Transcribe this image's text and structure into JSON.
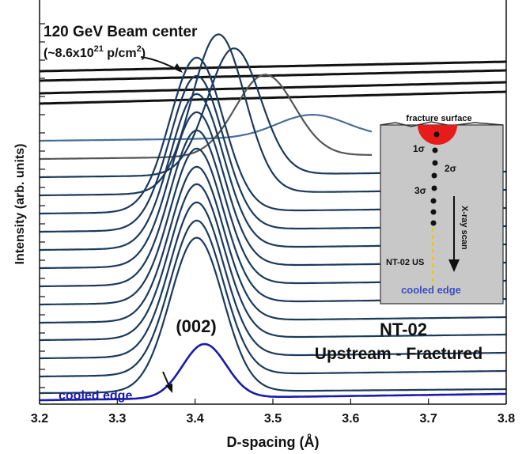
{
  "chart_data": {
    "type": "line",
    "xlabel": "D-spacing (Å)",
    "ylabel": "Intensity (arb. units)",
    "xlim": [
      3.2,
      3.8
    ],
    "x_ticks": [
      "3.2",
      "3.3",
      "3.4",
      "3.5",
      "3.6",
      "3.7",
      "3.8"
    ],
    "grid": false,
    "series": [
      {
        "name": "cooled edge",
        "peak_d": 3.412,
        "amplitude": 0.62,
        "color": "#1a1ab0",
        "emphasis": true
      },
      {
        "peak_d": 3.402,
        "amplitude": 0.95,
        "color": "#1b3a5c"
      },
      {
        "peak_d": 3.402,
        "amplitude": 0.95,
        "color": "#1b3a5c"
      },
      {
        "peak_d": 3.402,
        "amplitude": 0.95,
        "color": "#1b3a5c"
      },
      {
        "peak_d": 3.402,
        "amplitude": 0.95,
        "color": "#1b3a5c"
      },
      {
        "peak_d": 3.402,
        "amplitude": 0.95,
        "color": "#1b3a5c"
      },
      {
        "peak_d": 3.402,
        "amplitude": 0.95,
        "color": "#1b3a5c"
      },
      {
        "peak_d": 3.402,
        "amplitude": 0.95,
        "color": "#1b3a5c"
      },
      {
        "peak_d": 3.402,
        "amplitude": 0.95,
        "color": "#1b3a5c"
      },
      {
        "peak_d": 3.402,
        "amplitude": 0.95,
        "color": "#1b3a5c"
      },
      {
        "peak_d": 3.402,
        "amplitude": 0.95,
        "color": "#1b3a5c"
      },
      {
        "peak_d": 3.402,
        "amplitude": 0.95,
        "color": "#1b3a5c"
      },
      {
        "peak_d": 3.43,
        "amplitude": 0.98,
        "color": "#1b3a5c"
      },
      {
        "peak_d": 3.45,
        "amplitude": 0.8,
        "color": "#1b3a5c"
      },
      {
        "peak_d": 3.49,
        "amplitude": 0.48,
        "color": "#555555"
      },
      {
        "peak_d": 3.55,
        "amplitude": 0.12,
        "color": "#4a6f96"
      },
      {
        "peak_d": null,
        "amplitude": 0,
        "color": "#111111"
      },
      {
        "peak_d": null,
        "amplitude": 0,
        "color": "#111111"
      },
      {
        "peak_d": null,
        "amplitude": 0,
        "color": "#111111"
      },
      {
        "peak_d": null,
        "amplitude": 0,
        "color": "#111111"
      }
    ],
    "annotations": {
      "beam_center_title": "120 GeV Beam center",
      "fluence_prefix": "(~8.6x10",
      "fluence_exp": "21",
      "fluence_mid": " p/cm",
      "fluence_exp2": "2",
      "fluence_suffix": ")",
      "peak_label": "(002)",
      "sample_name": "NT-02",
      "sample_desc": "Upstream - Fractured",
      "cooled_edge": "cooled edge"
    },
    "inset": {
      "fracture_surface": "fracture surface",
      "sigma1": "1σ",
      "sigma2": "2σ",
      "sigma3": "3σ",
      "scan_label": "X-ray scan",
      "specimen_label": "NT-02 US",
      "cooled_edge": "cooled edge"
    }
  }
}
